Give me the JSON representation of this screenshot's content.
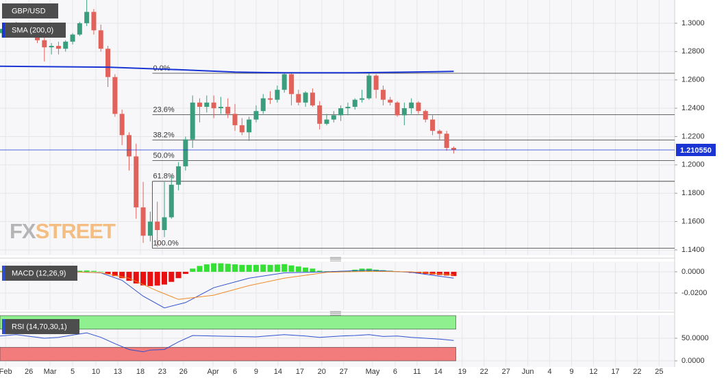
{
  "chart_data": [
    {
      "type": "candlestick",
      "title": "GBP/USD",
      "xlim": [
        -0.29,
        95.3
      ],
      "xticks": [
        {
          "value": 0.5,
          "label": "Feb"
        },
        {
          "value": 3.8,
          "label": "26"
        },
        {
          "value": 6.8,
          "label": "Mar"
        },
        {
          "value": 10,
          "label": "5"
        },
        {
          "value": 13.3,
          "label": "10"
        },
        {
          "value": 16.4,
          "label": "13"
        },
        {
          "value": 19.6,
          "label": "18"
        },
        {
          "value": 22.7,
          "label": "23"
        },
        {
          "value": 25.7,
          "label": "26"
        },
        {
          "value": 29.9,
          "label": "Apr"
        },
        {
          "value": 33,
          "label": "6"
        },
        {
          "value": 36,
          "label": "9"
        },
        {
          "value": 39.1,
          "label": "14"
        },
        {
          "value": 42.2,
          "label": "17"
        },
        {
          "value": 45.3,
          "label": "20"
        },
        {
          "value": 48.4,
          "label": "27"
        },
        {
          "value": 52.5,
          "label": "May"
        },
        {
          "value": 55.7,
          "label": "6"
        },
        {
          "value": 58.8,
          "label": "11"
        },
        {
          "value": 61.8,
          "label": "14"
        },
        {
          "value": 65.2,
          "label": "19"
        },
        {
          "value": 68.3,
          "label": "22"
        },
        {
          "value": 71.4,
          "label": "27"
        },
        {
          "value": 74.5,
          "label": "Jun"
        },
        {
          "value": 77.6,
          "label": "4"
        },
        {
          "value": 80.7,
          "label": "9"
        },
        {
          "value": 83.8,
          "label": "12"
        },
        {
          "value": 86.9,
          "label": "17"
        },
        {
          "value": 90,
          "label": "22"
        },
        {
          "value": 93.1,
          "label": "25"
        }
      ],
      "ylim": [
        1.1366,
        1.3164
      ],
      "yticks": [
        {
          "value": 1.14,
          "label": "1.1400"
        },
        {
          "value": 1.16,
          "label": "1.1600"
        },
        {
          "value": 1.18,
          "label": "1.1800"
        },
        {
          "value": 1.2,
          "label": "1.2000"
        },
        {
          "value": 1.22,
          "label": "1.2200"
        },
        {
          "value": 1.24,
          "label": "1.2400"
        },
        {
          "value": 1.26,
          "label": "1.2600"
        },
        {
          "value": 1.28,
          "label": "1.2800"
        },
        {
          "value": 1.3,
          "label": "1.3000"
        }
      ],
      "grid": true,
      "up_color": "#3a9e7c",
      "down_color": "#e0625a",
      "x": [
        0,
        1,
        2,
        3,
        4,
        5,
        6,
        7,
        8,
        9,
        10,
        11,
        12,
        13,
        14,
        15,
        16,
        17,
        18,
        19,
        20,
        21,
        22,
        23,
        24,
        25,
        26,
        27,
        28,
        29,
        30,
        31,
        32,
        33,
        34,
        35,
        36,
        37,
        38,
        39,
        40,
        41,
        42,
        43,
        44,
        45,
        46,
        47,
        48,
        49,
        50,
        51,
        52,
        53,
        54,
        55,
        56,
        57,
        58,
        59,
        60,
        61,
        62,
        63,
        64
      ],
      "open": [
        1.293,
        1.296,
        1.299,
        1.296,
        1.298,
        1.295,
        1.288,
        1.283,
        1.284,
        1.282,
        1.287,
        1.292,
        1.3,
        1.308,
        1.295,
        1.282,
        1.262,
        1.236,
        1.221,
        1.206,
        1.17,
        1.15,
        1.16,
        1.154,
        1.163,
        1.186,
        1.199,
        1.218,
        1.244,
        1.241,
        1.244,
        1.24,
        1.241,
        1.236,
        1.228,
        1.223,
        1.232,
        1.238,
        1.247,
        1.246,
        1.253,
        1.264,
        1.25,
        1.244,
        1.251,
        1.242,
        1.229,
        1.232,
        1.235,
        1.24,
        1.241,
        1.246,
        1.247,
        1.263,
        1.253,
        1.246,
        1.244,
        1.235,
        1.24,
        1.244,
        1.238,
        1.232,
        1.224,
        1.222,
        1.212
      ],
      "high": [
        1.296,
        1.3,
        1.301,
        1.299,
        1.3,
        1.296,
        1.29,
        1.286,
        1.287,
        1.288,
        1.293,
        1.301,
        1.32,
        1.31,
        1.299,
        1.284,
        1.264,
        1.239,
        1.223,
        1.215,
        1.188,
        1.167,
        1.174,
        1.188,
        1.192,
        1.202,
        1.22,
        1.249,
        1.247,
        1.249,
        1.249,
        1.248,
        1.247,
        1.243,
        1.233,
        1.234,
        1.242,
        1.25,
        1.252,
        1.256,
        1.265,
        1.265,
        1.253,
        1.252,
        1.254,
        1.245,
        1.236,
        1.238,
        1.242,
        1.244,
        1.247,
        1.253,
        1.265,
        1.264,
        1.256,
        1.248,
        1.245,
        1.244,
        1.247,
        1.245,
        1.239,
        1.235,
        1.225,
        1.224,
        1.213
      ],
      "low": [
        1.29,
        1.294,
        1.295,
        1.292,
        1.294,
        1.286,
        1.273,
        1.278,
        1.278,
        1.28,
        1.285,
        1.291,
        1.298,
        1.292,
        1.28,
        1.255,
        1.234,
        1.214,
        1.196,
        1.162,
        1.145,
        1.146,
        1.142,
        1.149,
        1.162,
        1.182,
        1.196,
        1.212,
        1.23,
        1.237,
        1.233,
        1.236,
        1.233,
        1.224,
        1.221,
        1.217,
        1.23,
        1.236,
        1.243,
        1.244,
        1.251,
        1.242,
        1.242,
        1.241,
        1.241,
        1.225,
        1.228,
        1.23,
        1.231,
        1.235,
        1.239,
        1.244,
        1.246,
        1.247,
        1.242,
        1.242,
        1.234,
        1.228,
        1.236,
        1.236,
        1.23,
        1.221,
        1.218,
        1.21,
        1.208
      ],
      "close": [
        1.296,
        1.299,
        1.296,
        1.298,
        1.295,
        1.288,
        1.283,
        1.284,
        1.282,
        1.287,
        1.292,
        1.3,
        1.308,
        1.295,
        1.282,
        1.262,
        1.236,
        1.221,
        1.206,
        1.17,
        1.15,
        1.16,
        1.154,
        1.163,
        1.186,
        1.199,
        1.218,
        1.244,
        1.241,
        1.244,
        1.24,
        1.241,
        1.236,
        1.228,
        1.223,
        1.232,
        1.238,
        1.247,
        1.246,
        1.253,
        1.264,
        1.25,
        1.244,
        1.251,
        1.242,
        1.229,
        1.232,
        1.235,
        1.24,
        1.241,
        1.246,
        1.247,
        1.263,
        1.253,
        1.246,
        1.244,
        1.235,
        1.24,
        1.244,
        1.238,
        1.232,
        1.224,
        1.222,
        1.212,
        1.2106
      ],
      "series": [
        {
          "name": "SMA (200,0)",
          "color": "#1a35d4",
          "x": [
            -0.29,
            15,
            25,
            33,
            40,
            50,
            58,
            64
          ],
          "values": [
            1.2696,
            1.269,
            1.2672,
            1.2655,
            1.265,
            1.265,
            1.2655,
            1.266
          ]
        }
      ],
      "fib_x": 21.3,
      "fib_levels": [
        {
          "label": "0.0%",
          "value": 1.2647
        },
        {
          "label": "23.6%",
          "value": 1.2355
        },
        {
          "label": "38.2%",
          "value": 1.2175
        },
        {
          "label": "50.0%",
          "value": 1.203
        },
        {
          "label": "61.8%",
          "value": 1.1884
        },
        {
          "label": "100.0%",
          "value": 1.1412
        }
      ],
      "last_price": {
        "value": 1.21055,
        "label": "1.210550",
        "color": "#1a35d4"
      },
      "watermark": [
        "FX",
        "STREET"
      ]
    },
    {
      "type": "macd",
      "title": "MACD (12,26,9)",
      "ylim": [
        -0.0355,
        0.009
      ],
      "yticks": [
        {
          "value": 0,
          "label": "0.0000"
        },
        {
          "value": -0.02,
          "label": "-0.0200"
        }
      ],
      "up_color": "#33e033",
      "down_color": "#e81010",
      "histogram": [
        0.0008,
        0.0007,
        0.0006,
        0.0004,
        0.0002,
        0.0,
        -0.0002,
        -0.0003,
        -0.0001,
        0.0002,
        0.0006,
        0.001,
        0.0012,
        0.0008,
        0.0002,
        -0.002,
        -0.004,
        -0.006,
        -0.0085,
        -0.011,
        -0.0128,
        -0.0135,
        -0.013,
        -0.012,
        -0.0095,
        -0.006,
        -0.002,
        0.003,
        0.0055,
        0.007,
        0.008,
        0.008,
        0.0075,
        0.007,
        0.0065,
        0.0065,
        0.0065,
        0.0068,
        0.0065,
        0.0068,
        0.0072,
        0.006,
        0.005,
        0.004,
        0.003,
        0.001,
        0.0005,
        0.0005,
        0.0008,
        0.001,
        0.002,
        0.003,
        0.003,
        0.002,
        0.0015,
        0.001,
        0.0005,
        0.0,
        -0.001,
        -0.0015,
        -0.002,
        -0.0025,
        -0.003,
        -0.0035,
        -0.004
      ],
      "series": [
        {
          "color": "#2f4fd0",
          "x": [
            -0.29,
            10,
            14,
            17,
            20,
            23,
            26,
            30,
            35,
            40,
            46,
            52,
            58,
            64
          ],
          "values": [
            0.0,
            0.0,
            -0.001,
            -0.008,
            -0.023,
            -0.034,
            -0.029,
            -0.015,
            -0.006,
            -0.001,
            0.0,
            0.0015,
            -0.0005,
            -0.006
          ]
        },
        {
          "color": "#f08a24",
          "x": [
            -0.29,
            10,
            14,
            18,
            22,
            25,
            30,
            35,
            40,
            46,
            52,
            58,
            64
          ],
          "values": [
            0.0,
            -0.0002,
            -0.0008,
            -0.006,
            -0.018,
            -0.026,
            -0.022,
            -0.013,
            -0.006,
            -0.0005,
            0.0005,
            0.0,
            -0.003
          ]
        }
      ]
    },
    {
      "type": "rsi",
      "title": "RSI (14,70,30,1)",
      "ylim": [
        -12.1,
        100
      ],
      "yticks": [
        {
          "value": 50,
          "label": "50.0000"
        },
        {
          "value": 0,
          "label": "0.0000"
        }
      ],
      "bands": [
        {
          "from": 70,
          "to": 100,
          "color": "#8ef08e"
        },
        {
          "from": 0,
          "to": 30,
          "color": "#f27b7b"
        }
      ],
      "band_end": 64.3,
      "series": [
        {
          "color": "#2f4fd0",
          "x": [
            -0.29,
            2,
            4,
            6,
            8,
            10,
            12,
            14,
            16,
            18,
            20,
            21,
            23,
            25,
            27,
            30,
            33,
            36,
            40,
            43,
            45,
            48,
            50,
            52,
            54,
            56,
            58,
            60,
            62,
            64
          ],
          "values": [
            55,
            58,
            54,
            50,
            52,
            57,
            62,
            52,
            38,
            25,
            20,
            24,
            25,
            42,
            56,
            55,
            54,
            53,
            58,
            55,
            52,
            55,
            56,
            58,
            54,
            55,
            52,
            50,
            48,
            45
          ]
        }
      ]
    }
  ]
}
